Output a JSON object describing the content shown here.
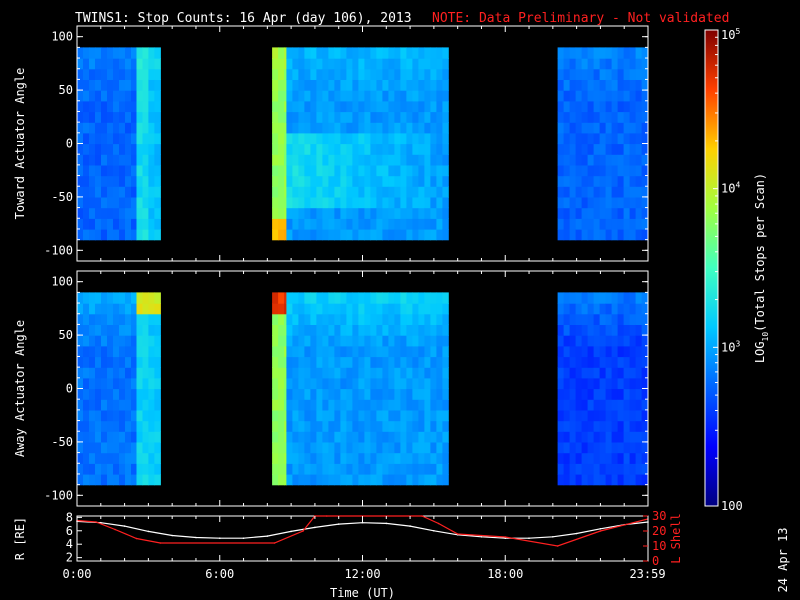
{
  "header": {
    "title": "TWINS1: Stop Counts: 16 Apr (day 106), 2013",
    "note": "NOTE: Data Preliminary - Not validated"
  },
  "stamp": "24 Apr 13",
  "colors": {
    "red": "#ff2020",
    "white": "#ffffff",
    "bg": "#000000"
  },
  "chart_data": [
    {
      "type": "heatmap",
      "ylabel": "Toward Actuator Angle",
      "yticks": [
        "100",
        "50",
        "0",
        "-50",
        "-100"
      ],
      "ylim": [
        -110,
        110
      ],
      "angle_range": [
        -90,
        90
      ],
      "xlim": [
        0,
        24
      ],
      "data_blocks": [
        {
          "start_hr": 0.0,
          "end_hr": 2.5,
          "base_log10": 2.75,
          "feature": "none"
        },
        {
          "start_hr": 2.5,
          "end_hr": 3.0,
          "base_log10": 3.25,
          "feature": "none"
        },
        {
          "start_hr": 3.0,
          "end_hr": 3.5,
          "base_log10": 3.1,
          "feature": "none"
        },
        {
          "start_hr": 8.2,
          "end_hr": 8.8,
          "base_log10": 3.8,
          "feature": "bottom_hot"
        },
        {
          "start_hr": 8.8,
          "end_hr": 15.6,
          "base_log10": 2.95,
          "feature": "band_mid"
        },
        {
          "start_hr": 20.2,
          "end_hr": 23.99,
          "base_log10": 2.75,
          "feature": "none"
        }
      ]
    },
    {
      "type": "heatmap",
      "ylabel": "Away Actuator Angle",
      "yticks": [
        "100",
        "50",
        "0",
        "-50",
        "-100"
      ],
      "ylim": [
        -110,
        110
      ],
      "angle_range": [
        -90,
        90
      ],
      "xlim": [
        0,
        24
      ],
      "data_blocks": [
        {
          "start_hr": 0.0,
          "end_hr": 2.5,
          "base_log10": 2.8,
          "feature": "top_bright"
        },
        {
          "start_hr": 2.5,
          "end_hr": 3.0,
          "base_log10": 3.2,
          "feature": "top_hot"
        },
        {
          "start_hr": 3.0,
          "end_hr": 3.5,
          "base_log10": 3.15,
          "feature": "top_hot"
        },
        {
          "start_hr": 8.2,
          "end_hr": 8.8,
          "base_log10": 3.8,
          "feature": "top_hot"
        },
        {
          "start_hr": 8.8,
          "end_hr": 15.6,
          "base_log10": 2.95,
          "feature": "top_bright"
        },
        {
          "start_hr": 20.2,
          "end_hr": 23.99,
          "base_log10": 2.6,
          "feature": "top_bright"
        }
      ]
    },
    {
      "type": "line",
      "xlabel": "Time (UT)",
      "xticks": [
        "0:00",
        "6:00",
        "12:00",
        "18:00",
        "23:59"
      ],
      "xtick_hours": [
        0,
        6,
        12,
        18,
        23.98
      ],
      "ylabel_left": "R [RE]",
      "ylabel_right": "L Shell",
      "yticks_left": [
        "8",
        "6",
        "4",
        "2"
      ],
      "yticks_right": [
        "30",
        "20",
        "10",
        "0"
      ],
      "ylim_left": [
        1.5,
        8.2
      ],
      "ylim_right": [
        0,
        30
      ],
      "series": [
        {
          "axis": "left",
          "color": "#ffffff",
          "x": [
            0,
            1,
            2,
            3,
            4,
            5,
            6,
            7,
            8,
            9,
            10,
            11,
            12,
            13,
            14,
            15,
            16,
            17,
            18,
            19,
            20,
            21,
            22,
            23,
            24
          ],
          "y": [
            7.4,
            7.2,
            6.7,
            5.9,
            5.3,
            5.0,
            4.9,
            4.9,
            5.2,
            5.9,
            6.5,
            7.0,
            7.2,
            7.1,
            6.7,
            6.0,
            5.4,
            5.1,
            4.9,
            4.9,
            5.1,
            5.6,
            6.3,
            6.9,
            7.3
          ]
        },
        {
          "axis": "right",
          "color": "#ff2020",
          "x": [
            0,
            0.8,
            1.6,
            2.5,
            3.5,
            8.3,
            9.5,
            10.0,
            10.5,
            14.5,
            15.2,
            16.0,
            18.0,
            20.2,
            22.0,
            23.99
          ],
          "y": [
            27,
            26,
            21,
            15,
            12,
            12,
            20,
            30,
            30,
            30,
            25,
            18,
            16,
            10,
            20,
            28
          ]
        }
      ]
    }
  ],
  "colorbar": {
    "label": "LOG10(Total Stops per Scan)",
    "label_main": "LOG",
    "label_sub": "10",
    "label_rest": "(Total Stops per Scan)",
    "range_log10": [
      2,
      5
    ],
    "ticks": [
      {
        "log10": 5,
        "base": "10",
        "exp": "5"
      },
      {
        "log10": 4,
        "base": "10",
        "exp": "4"
      },
      {
        "log10": 3,
        "base": "10",
        "exp": "3"
      },
      {
        "log10": 2,
        "base": "100",
        "exp": ""
      }
    ]
  }
}
